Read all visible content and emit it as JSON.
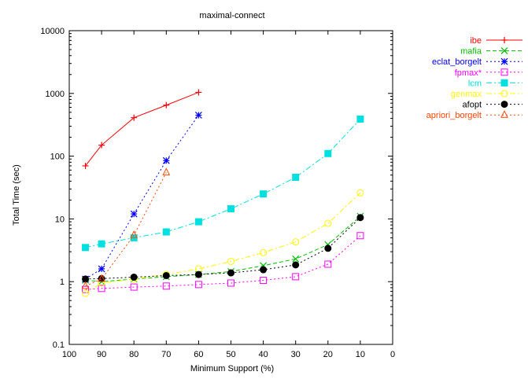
{
  "chart_data": {
    "type": "line",
    "title": "maximal-connect",
    "xlabel": "Minimum Support (%)",
    "ylabel": "Total Time (sec)",
    "xlim": [
      100,
      0
    ],
    "ylim": [
      0.1,
      10000
    ],
    "yscale": "log",
    "x_ticks": [
      "100",
      "90",
      "80",
      "70",
      "60",
      "50",
      "40",
      "30",
      "20",
      "10",
      "0"
    ],
    "y_ticks": [
      "0.1",
      "1",
      "10",
      "100",
      "1000",
      "10000"
    ],
    "grid": false,
    "legend_position": "outside-right",
    "series": [
      {
        "name": "ibe",
        "color": "#ff0000",
        "marker": "plus",
        "dash": "solid",
        "points": [
          [
            95,
            70
          ],
          [
            90,
            150
          ],
          [
            80,
            410
          ],
          [
            70,
            650
          ],
          [
            60,
            1040
          ]
        ]
      },
      {
        "name": "mafia",
        "color": "#00c000",
        "marker": "cross",
        "dash": "dash",
        "points": [
          [
            95,
            1.05
          ],
          [
            90,
            1.0
          ],
          [
            80,
            1.1
          ],
          [
            70,
            1.2
          ],
          [
            60,
            1.3
          ],
          [
            50,
            1.45
          ],
          [
            40,
            1.8
          ],
          [
            30,
            2.3
          ],
          [
            20,
            3.9
          ],
          [
            10,
            11
          ]
        ]
      },
      {
        "name": "eclat_borgelt",
        "color": "#0000ff",
        "marker": "star",
        "dash": "dot",
        "points": [
          [
            95,
            1.1
          ],
          [
            90,
            1.6
          ],
          [
            80,
            12
          ],
          [
            70,
            85
          ],
          [
            60,
            450
          ]
        ]
      },
      {
        "name": "fpmax*",
        "color": "#ff00ff",
        "marker": "square-open",
        "dash": "dot",
        "points": [
          [
            95,
            0.75
          ],
          [
            90,
            0.78
          ],
          [
            80,
            0.82
          ],
          [
            70,
            0.85
          ],
          [
            60,
            0.9
          ],
          [
            50,
            0.95
          ],
          [
            40,
            1.05
          ],
          [
            30,
            1.2
          ],
          [
            20,
            1.9
          ],
          [
            10,
            5.4
          ]
        ]
      },
      {
        "name": "lcm",
        "color": "#00e0e0",
        "marker": "square-filled",
        "dash": "dashdot",
        "points": [
          [
            95,
            3.5
          ],
          [
            90,
            4.0
          ],
          [
            80,
            5.0
          ],
          [
            70,
            6.2
          ],
          [
            60,
            9.0
          ],
          [
            50,
            14.5
          ],
          [
            40,
            25
          ],
          [
            30,
            46
          ],
          [
            20,
            110
          ],
          [
            10,
            390
          ]
        ]
      },
      {
        "name": "genmax",
        "color": "#ffff00",
        "marker": "circle-open",
        "dash": "dashdot",
        "points": [
          [
            95,
            0.65
          ],
          [
            90,
            0.95
          ],
          [
            80,
            1.1
          ],
          [
            70,
            1.3
          ],
          [
            60,
            1.6
          ],
          [
            50,
            2.1
          ],
          [
            40,
            2.9
          ],
          [
            30,
            4.3
          ],
          [
            20,
            8.5
          ],
          [
            10,
            26
          ]
        ]
      },
      {
        "name": "afopt",
        "color": "#000000",
        "marker": "circle-filled",
        "dash": "dot",
        "points": [
          [
            95,
            1.1
          ],
          [
            90,
            1.12
          ],
          [
            80,
            1.18
          ],
          [
            70,
            1.25
          ],
          [
            60,
            1.3
          ],
          [
            50,
            1.38
          ],
          [
            40,
            1.55
          ],
          [
            30,
            1.85
          ],
          [
            20,
            3.4
          ],
          [
            10,
            10.5
          ]
        ]
      },
      {
        "name": "apriori_borgelt",
        "color": "#ff4500",
        "marker": "triangle-open",
        "dash": "dot",
        "points": [
          [
            95,
            0.85
          ],
          [
            90,
            1.1
          ],
          [
            80,
            5.5
          ],
          [
            70,
            55
          ]
        ]
      }
    ]
  }
}
